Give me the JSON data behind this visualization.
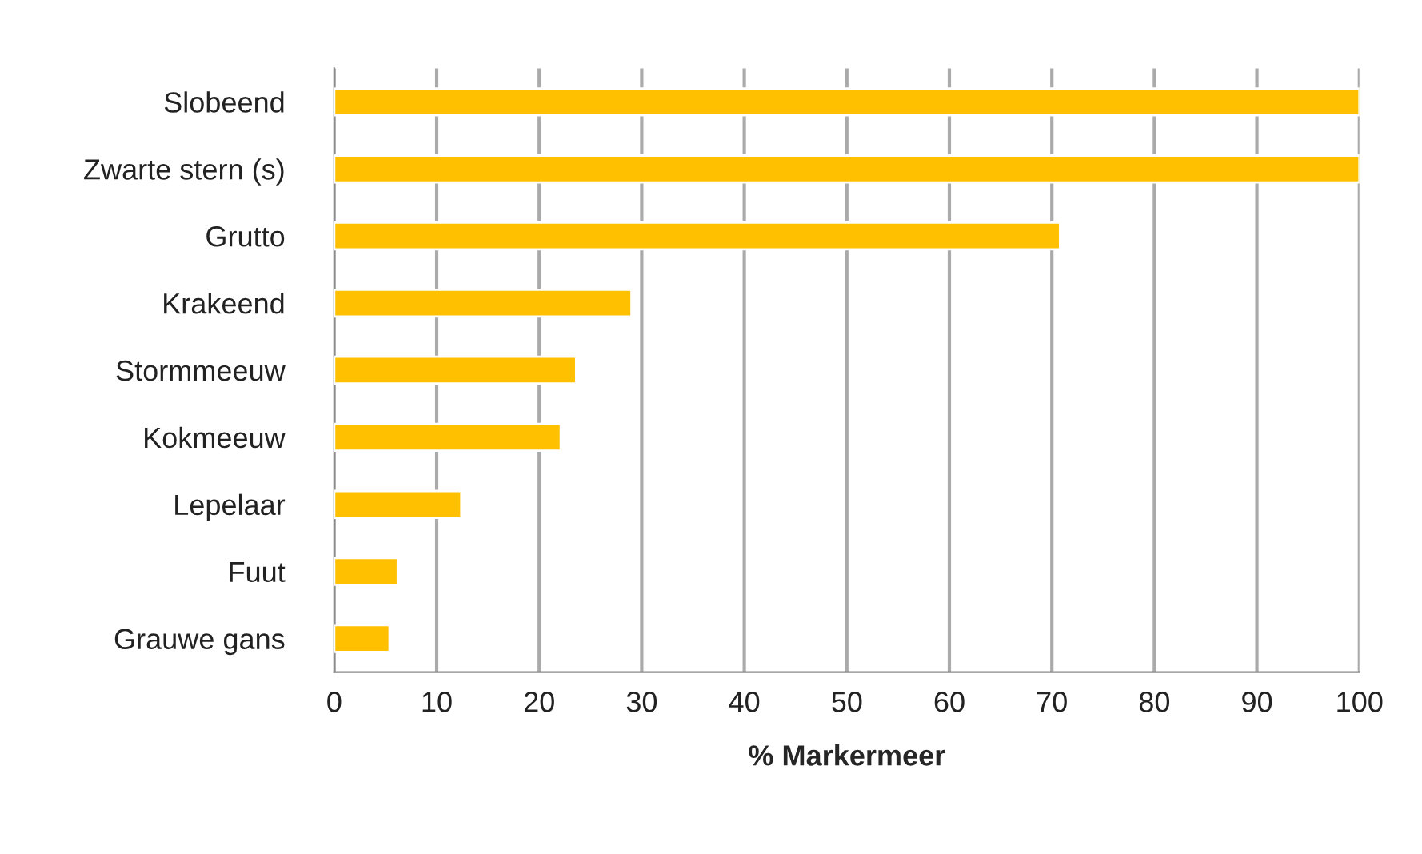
{
  "chart_data": {
    "type": "bar",
    "orientation": "horizontal",
    "xlabel": "% Markermeer",
    "categories": [
      "Slobeend",
      "Zwarte stern (s)",
      "Grutto",
      "Krakeend",
      "Stormmeeuw",
      "Kokmeeuw",
      "Lepelaar",
      "Fuut",
      "Grauwe gans"
    ],
    "values": [
      100,
      100,
      70.8,
      29.0,
      23.6,
      22.1,
      12.4,
      6.2,
      5.4
    ],
    "color": "#ffc000",
    "xlim": [
      0,
      100
    ],
    "xticks": [
      0,
      10,
      20,
      30,
      40,
      50,
      60,
      70,
      80,
      90,
      100
    ],
    "grid": "x",
    "legend": false
  }
}
